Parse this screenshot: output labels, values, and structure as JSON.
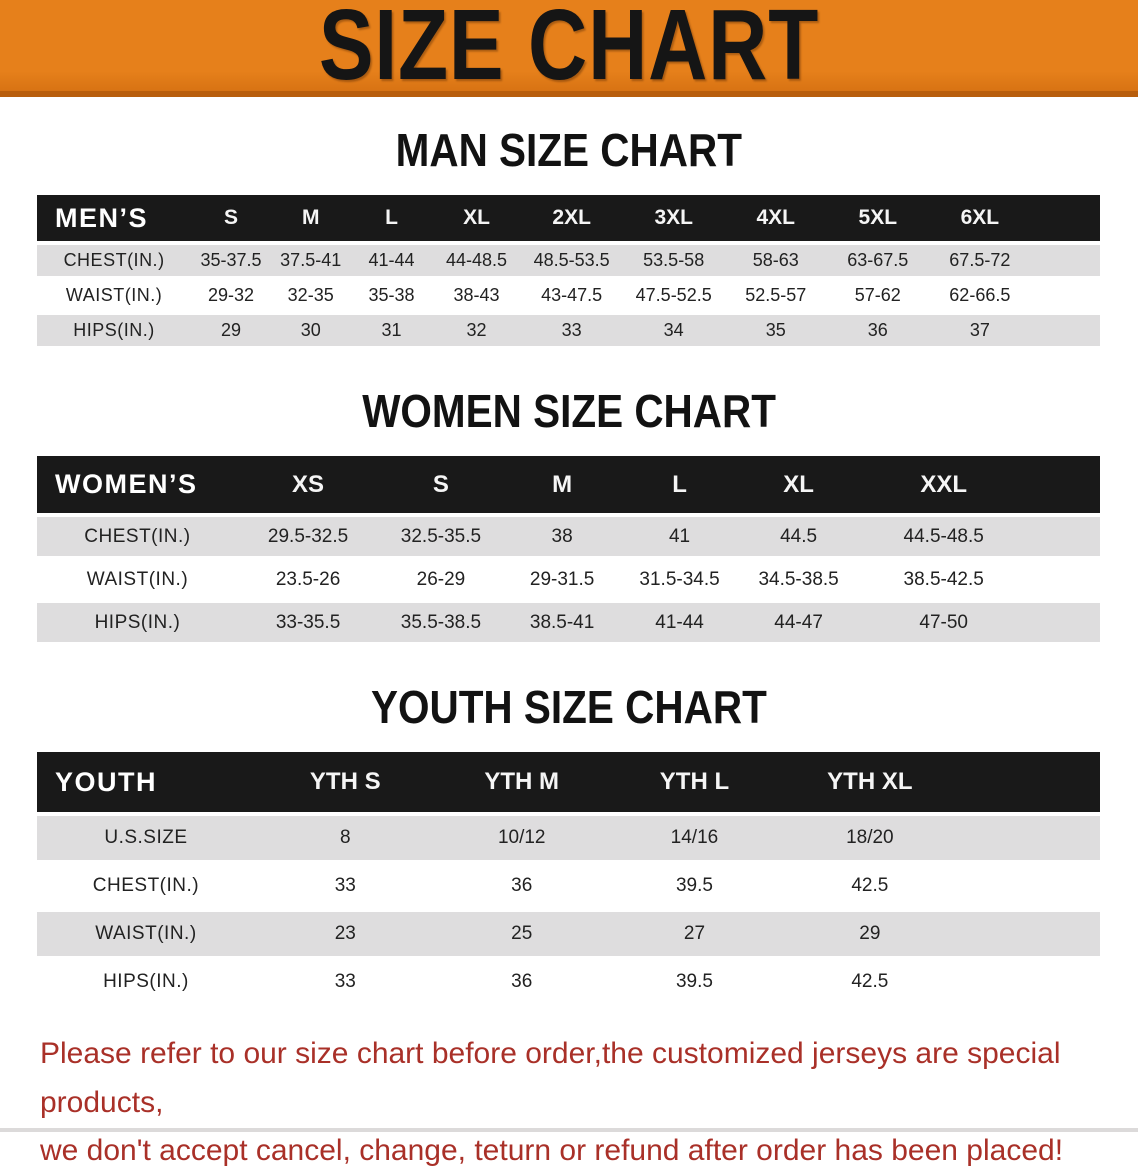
{
  "banner": {
    "title": "SIZE CHART"
  },
  "sections": [
    {
      "id": "men",
      "heading": "MAN SIZE CHART",
      "table": {
        "corner_label": "MEN’S",
        "columns": [
          "S",
          "M",
          "L",
          "XL",
          "2XL",
          "3XL",
          "4XL",
          "5XL",
          "6XL"
        ],
        "rows": [
          {
            "label": "CHEST(IN.)",
            "values": [
              "35-37.5",
              "37.5-41",
              "41-44",
              "44-48.5",
              "48.5-53.5",
              "53.5-58",
              "58-63",
              "63-67.5",
              "67.5-72"
            ]
          },
          {
            "label": "WAIST(IN.)",
            "values": [
              "29-32",
              "32-35",
              "35-38",
              "38-43",
              "43-47.5",
              "47.5-52.5",
              "52.5-57",
              "57-62",
              "62-66.5"
            ]
          },
          {
            "label": "HIPS(IN.)",
            "values": [
              "29",
              "30",
              "31",
              "32",
              "33",
              "34",
              "35",
              "36",
              "37"
            ]
          }
        ]
      }
    },
    {
      "id": "women",
      "heading": "WOMEN SIZE CHART",
      "table": {
        "corner_label": "WOMEN’S",
        "columns": [
          "XS",
          "S",
          "M",
          "L",
          "XL",
          "XXL"
        ],
        "rows": [
          {
            "label": "CHEST(IN.)",
            "values": [
              "29.5-32.5",
              "32.5-35.5",
              "38",
              "41",
              "44.5",
              "44.5-48.5"
            ]
          },
          {
            "label": "WAIST(IN.)",
            "values": [
              "23.5-26",
              "26-29",
              "29-31.5",
              "31.5-34.5",
              "34.5-38.5",
              "38.5-42.5"
            ]
          },
          {
            "label": "HIPS(IN.)",
            "values": [
              "33-35.5",
              "35.5-38.5",
              "38.5-41",
              "41-44",
              "44-47",
              "47-50"
            ]
          }
        ]
      }
    },
    {
      "id": "youth",
      "heading": "YOUTH SIZE CHART",
      "table": {
        "corner_label": "YOUTH",
        "columns": [
          "YTH S",
          "YTH M",
          "YTH L",
          "YTH XL"
        ],
        "rows": [
          {
            "label": "U.S.SIZE",
            "values": [
              "8",
              "10/12",
              "14/16",
              "18/20"
            ]
          },
          {
            "label": "CHEST(IN.)",
            "values": [
              "33",
              "36",
              "39.5",
              "42.5"
            ]
          },
          {
            "label": "WAIST(IN.)",
            "values": [
              "23",
              "25",
              "27",
              "29"
            ]
          },
          {
            "label": "HIPS(IN.)",
            "values": [
              "33",
              "36",
              "39.5",
              "42.5"
            ]
          }
        ]
      }
    }
  ],
  "footer": {
    "line1": "Please refer to our size chart before order,the customized jerseys are special products,",
    "line2": "we don't accept cancel, change, teturn or refund after order has been placed!"
  },
  "colors": {
    "banner_orange": "#E6801B",
    "banner_edge": "#B85E0D",
    "header_black": "#191919",
    "stripe_gray": "#DEDDDE",
    "text_dark": "#222222",
    "footer_red": "#A93028"
  }
}
